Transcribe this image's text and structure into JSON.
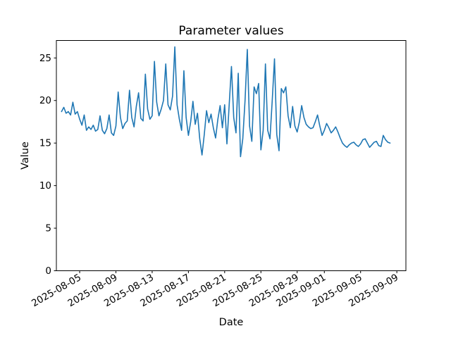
{
  "figure": {
    "background": "#ffffff"
  },
  "chart_data": {
    "type": "line",
    "title": "Parameter values",
    "xlabel": "Date",
    "ylabel": "Value",
    "grid": false,
    "legend": "none",
    "background": "#ffffff",
    "spine_color": "#000000",
    "x_tick_rotation_deg": 30,
    "x_tick_labels": [
      "2025-08-05",
      "2025-08-09",
      "2025-08-13",
      "2025-08-17",
      "2025-08-21",
      "2025-08-25",
      "2025-08-29",
      "2025-09-01",
      "2025-09-05",
      "2025-09-09"
    ],
    "x_tick_day_offsets": [
      2,
      6,
      10,
      14,
      18,
      22,
      26,
      29,
      33,
      37
    ],
    "y_ticks": [
      0,
      5,
      10,
      15,
      20,
      25
    ],
    "xlim_day_offsets": [
      -0.57,
      38.0
    ],
    "ylim": [
      0,
      27.05
    ],
    "series": [
      {
        "name": "parameter-values",
        "color": "#1f77b4",
        "line_width": 1.6,
        "start_date": "2025-08-03",
        "step_days": 0.25,
        "values": [
          18.7,
          19.2,
          18.5,
          18.7,
          18.3,
          19.8,
          18.4,
          18.7,
          17.8,
          17.1,
          18.3,
          16.5,
          16.9,
          16.6,
          17.1,
          16.4,
          16.6,
          18.2,
          16.5,
          16.1,
          16.7,
          18.3,
          16.2,
          15.9,
          17.0,
          21.0,
          18.0,
          16.7,
          17.3,
          17.6,
          21.2,
          18.0,
          16.9,
          19.3,
          20.9,
          17.9,
          17.6,
          23.1,
          19.0,
          17.8,
          18.2,
          24.6,
          19.8,
          18.2,
          19.0,
          20.0,
          24.3,
          19.5,
          18.9,
          20.5,
          26.3,
          19.5,
          17.8,
          16.5,
          23.5,
          18.0,
          15.9,
          17.5,
          19.9,
          17.2,
          18.5,
          15.5,
          13.6,
          16.0,
          18.8,
          17.4,
          18.4,
          16.8,
          15.6,
          17.8,
          19.4,
          16.8,
          19.5,
          14.9,
          19.5,
          24.0,
          18.0,
          16.2,
          23.2,
          13.4,
          15.5,
          20.0,
          26.0,
          17.0,
          15.2,
          21.6,
          20.8,
          22.0,
          14.2,
          16.5,
          24.3,
          16.5,
          15.5,
          20.0,
          24.9,
          16.0,
          14.1,
          21.4,
          20.9,
          21.6,
          18.2,
          16.8,
          19.3,
          17.0,
          16.3,
          17.5,
          19.4,
          18.0,
          17.2,
          16.9,
          16.7,
          16.8,
          17.5,
          18.3,
          17.0,
          15.9,
          16.5,
          17.3,
          16.8,
          16.2,
          16.5,
          16.9,
          16.3,
          15.6,
          15.0,
          14.7,
          14.5,
          14.8,
          15.0,
          15.1,
          14.8,
          14.6,
          14.9,
          15.4,
          15.5,
          15.0,
          14.5,
          14.8,
          15.1,
          15.2,
          14.7,
          14.6,
          15.9,
          15.4,
          15.1,
          15.0
        ]
      }
    ]
  }
}
